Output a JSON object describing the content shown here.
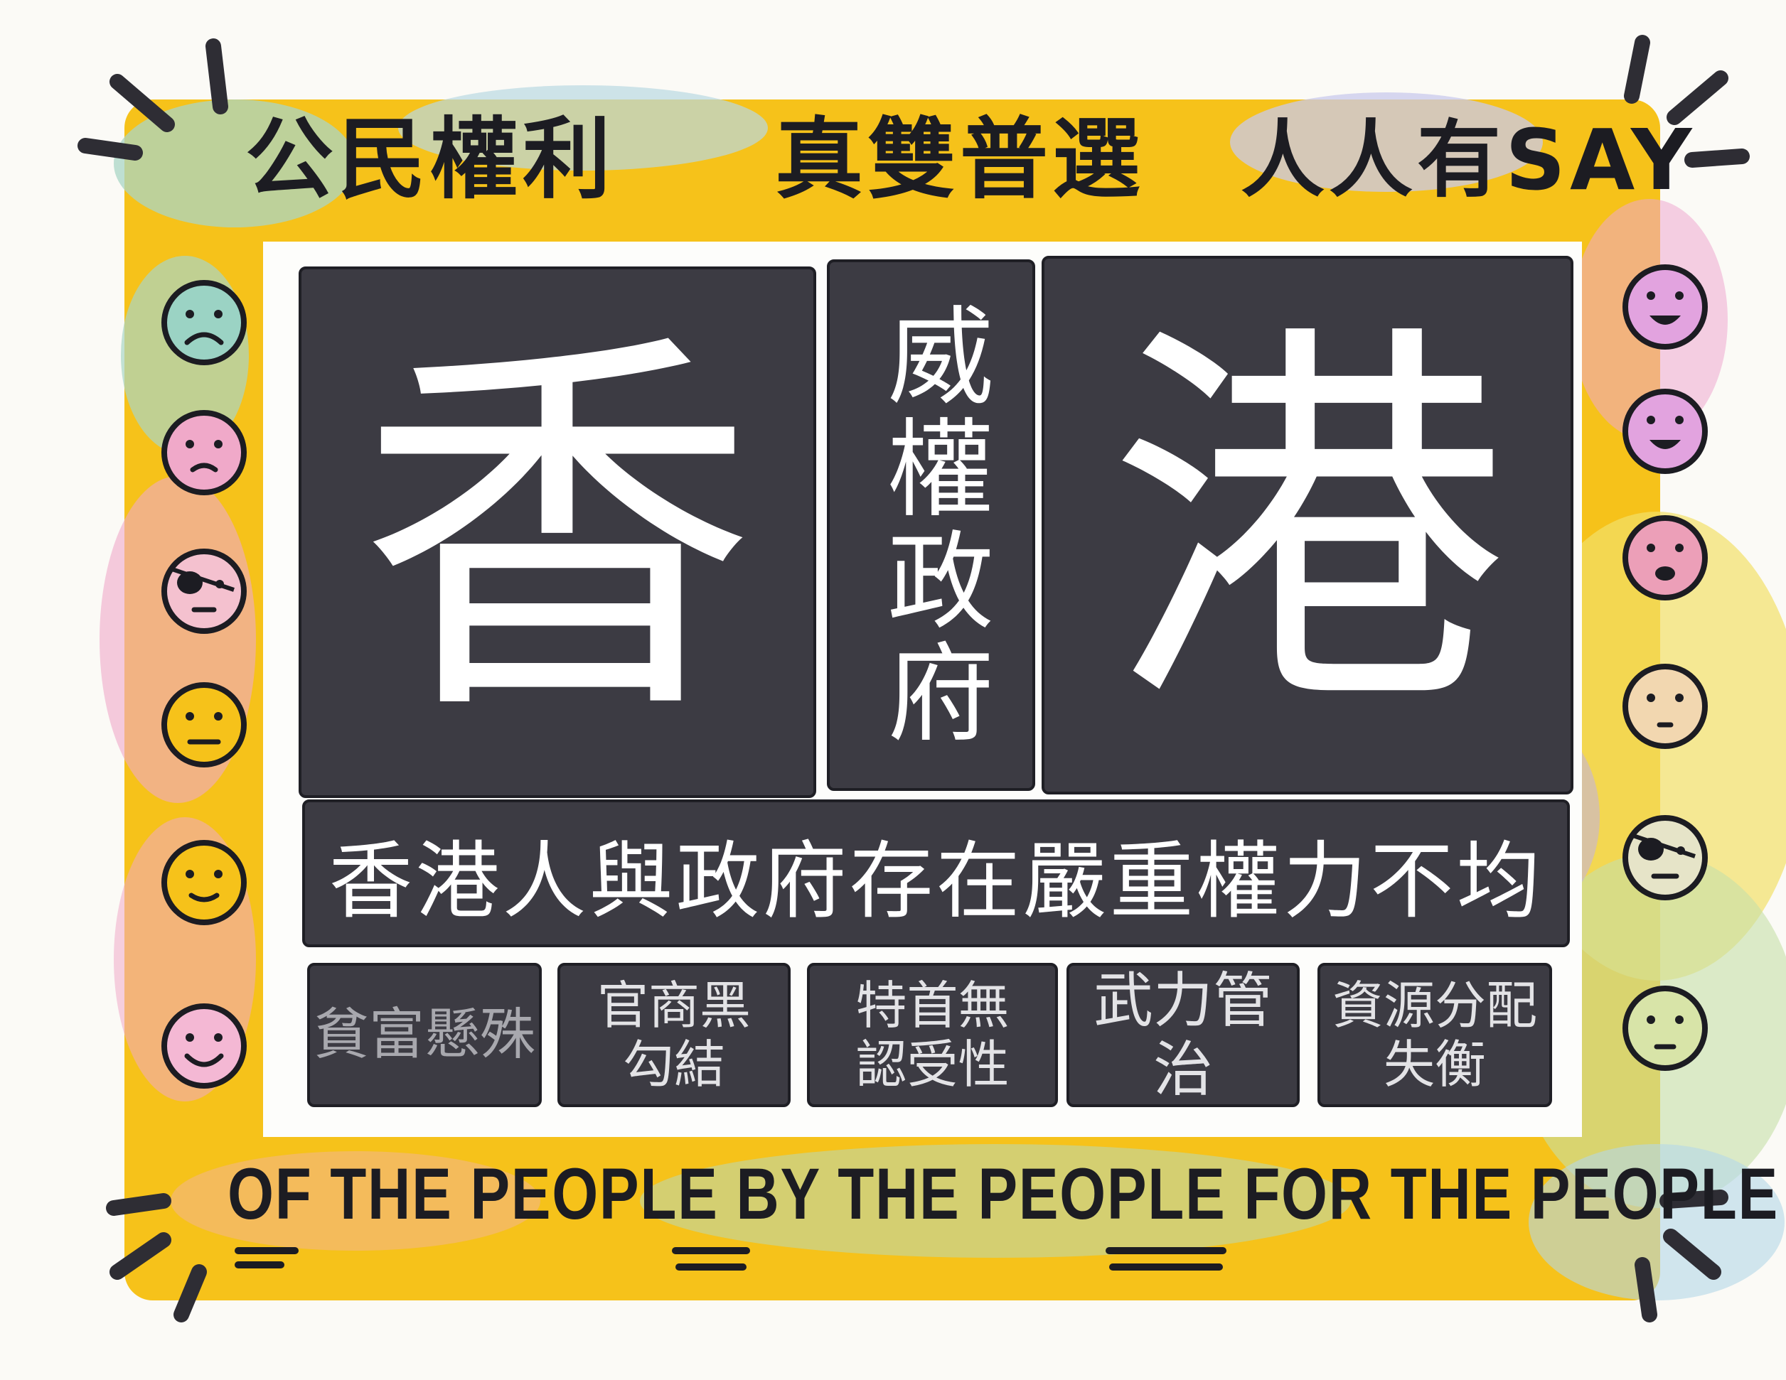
{
  "slogans": [
    "公民權利",
    "真雙普選",
    "人人有SAY"
  ],
  "title": {
    "left_char": "香",
    "right_char": "港",
    "center_vertical": "威權政府"
  },
  "banner": "香港人與政府存在嚴重權力不均",
  "issues": [
    "貧富懸殊",
    "官商黑\n勾結",
    "特首無\n認受性",
    "武力管治",
    "資源分配\n失衡"
  ],
  "motto": "OF THE PEOPLE BY THE PEOPLE FOR THE PEOPLE",
  "faces": {
    "left": [
      "sad-face",
      "worried-face",
      "eyepatch-face",
      "neutral-face",
      "smile-face",
      "happy-face"
    ],
    "right": [
      "grin-face",
      "grin-face",
      "open-mouth-face",
      "neutral-face",
      "eyepatch-face",
      "neutral-face"
    ]
  },
  "colors": {
    "border_yellow": "#f6c21a",
    "dark_box": "#3c3b43",
    "ink": "#1c1c22"
  }
}
